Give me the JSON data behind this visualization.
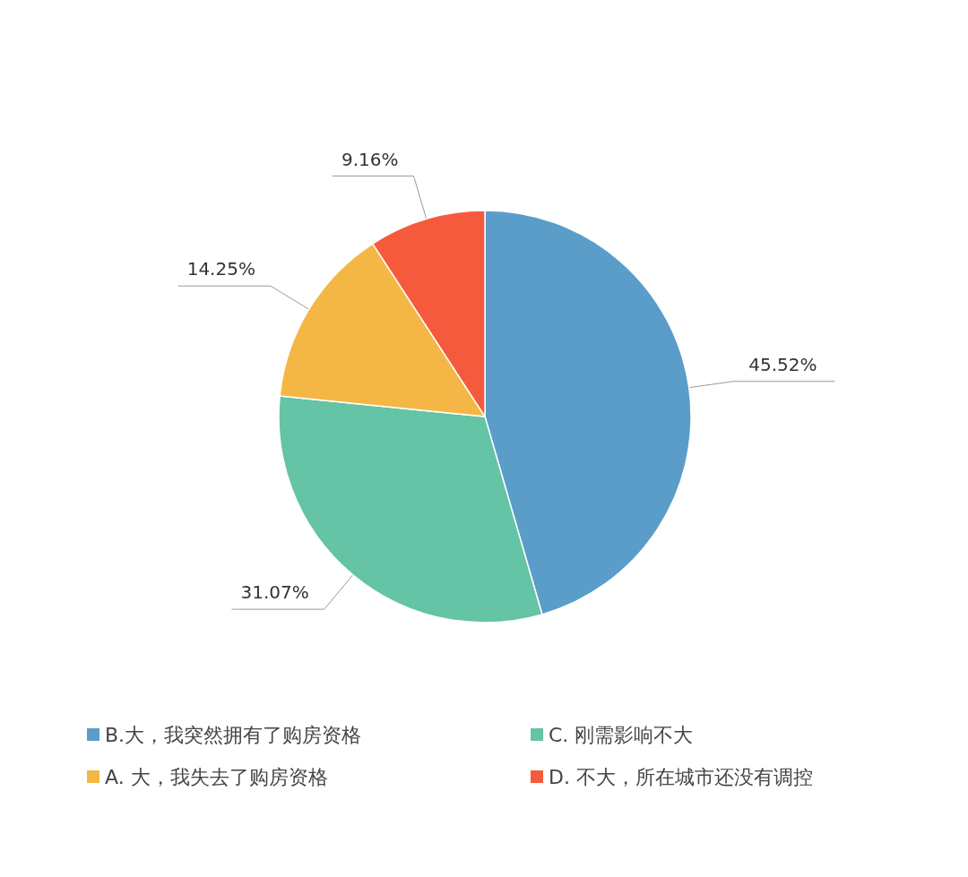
{
  "chart_data": {
    "type": "pie",
    "categories": [
      "B.大，我突然拥有了购房资格",
      "C. 刚需影响不大",
      "A. 大，我失去了购房资格",
      "D. 不大，所在城市还没有调控"
    ],
    "values": [
      45.52,
      31.07,
      14.25,
      9.16
    ],
    "colors": [
      "#5b9dc9",
      "#64c4a5",
      "#f4b746",
      "#f65a3c"
    ],
    "value_labels": [
      "45.52%",
      "31.07%",
      "14.25%",
      "9.16%"
    ],
    "legend": "bottom"
  }
}
